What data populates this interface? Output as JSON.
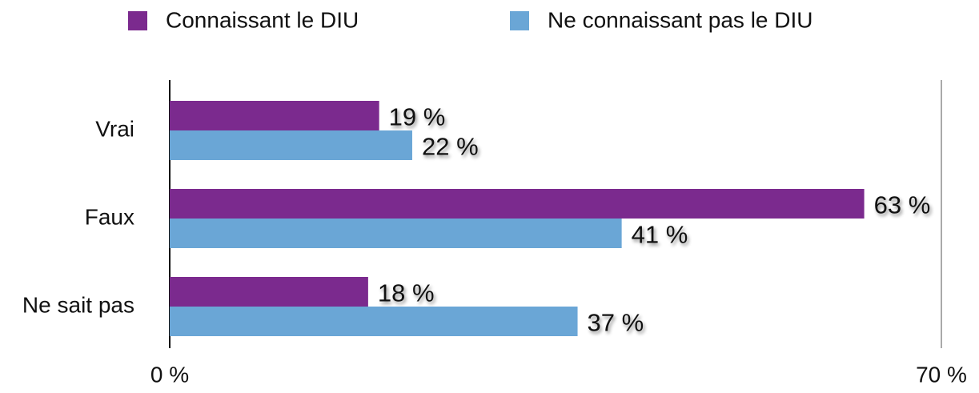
{
  "chart_data": {
    "type": "hbar",
    "categories": [
      "Vrai",
      "Faux",
      "Ne sait pas"
    ],
    "series": [
      {
        "name": "Connaissant le DIU",
        "color": "#7b2a8e",
        "values": [
          19,
          63,
          18
        ],
        "value_labels": [
          "19 %",
          "63 %",
          "18 %"
        ]
      },
      {
        "name": "Ne connaissant pas le DIU",
        "color": "#6aa6d6",
        "values": [
          22,
          41,
          37
        ],
        "value_labels": [
          "22 %",
          "41 %",
          "37 %"
        ]
      }
    ],
    "xlim": [
      0,
      70
    ],
    "xticks": [
      {
        "value": 0,
        "label": "0 %"
      },
      {
        "value": 70,
        "label": "70 %"
      }
    ],
    "grid": true,
    "legend": "top"
  }
}
